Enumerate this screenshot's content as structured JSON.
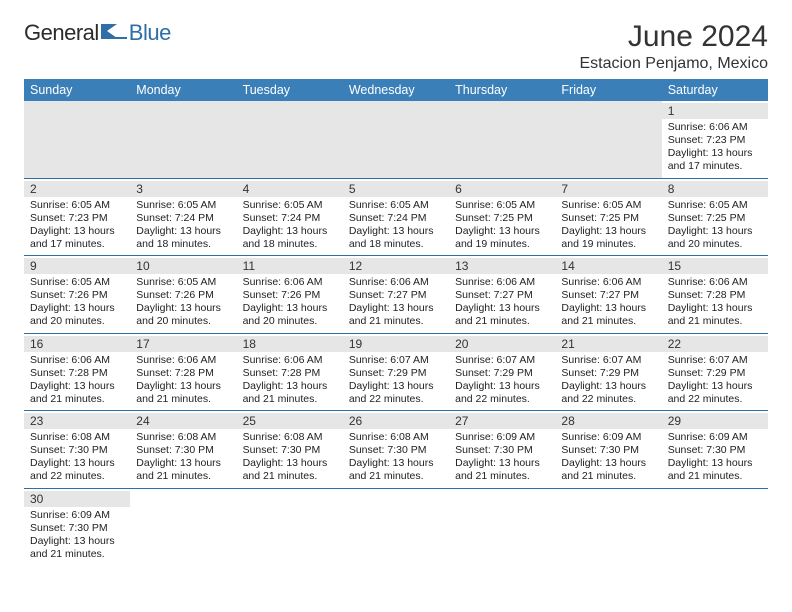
{
  "logo": {
    "text1": "General",
    "text2": "Blue"
  },
  "title": "June 2024",
  "location": "Estacion Penjamo, Mexico",
  "dayHeaders": [
    "Sunday",
    "Monday",
    "Tuesday",
    "Wednesday",
    "Thursday",
    "Friday",
    "Saturday"
  ],
  "colors": {
    "headerBg": "#3b7fb8",
    "headerText": "#ffffff",
    "rowDivider": "#2f6fa7",
    "dayBarBg": "#e6e6e6",
    "logoBlue": "#2f6fa7"
  },
  "weeks": [
    [
      null,
      null,
      null,
      null,
      null,
      null,
      {
        "n": "1",
        "sr": "6:06 AM",
        "ss": "7:23 PM",
        "dl": "13 hours and 17 minutes."
      }
    ],
    [
      {
        "n": "2",
        "sr": "6:05 AM",
        "ss": "7:23 PM",
        "dl": "13 hours and 17 minutes."
      },
      {
        "n": "3",
        "sr": "6:05 AM",
        "ss": "7:24 PM",
        "dl": "13 hours and 18 minutes."
      },
      {
        "n": "4",
        "sr": "6:05 AM",
        "ss": "7:24 PM",
        "dl": "13 hours and 18 minutes."
      },
      {
        "n": "5",
        "sr": "6:05 AM",
        "ss": "7:24 PM",
        "dl": "13 hours and 18 minutes."
      },
      {
        "n": "6",
        "sr": "6:05 AM",
        "ss": "7:25 PM",
        "dl": "13 hours and 19 minutes."
      },
      {
        "n": "7",
        "sr": "6:05 AM",
        "ss": "7:25 PM",
        "dl": "13 hours and 19 minutes."
      },
      {
        "n": "8",
        "sr": "6:05 AM",
        "ss": "7:25 PM",
        "dl": "13 hours and 20 minutes."
      }
    ],
    [
      {
        "n": "9",
        "sr": "6:05 AM",
        "ss": "7:26 PM",
        "dl": "13 hours and 20 minutes."
      },
      {
        "n": "10",
        "sr": "6:05 AM",
        "ss": "7:26 PM",
        "dl": "13 hours and 20 minutes."
      },
      {
        "n": "11",
        "sr": "6:06 AM",
        "ss": "7:26 PM",
        "dl": "13 hours and 20 minutes."
      },
      {
        "n": "12",
        "sr": "6:06 AM",
        "ss": "7:27 PM",
        "dl": "13 hours and 21 minutes."
      },
      {
        "n": "13",
        "sr": "6:06 AM",
        "ss": "7:27 PM",
        "dl": "13 hours and 21 minutes."
      },
      {
        "n": "14",
        "sr": "6:06 AM",
        "ss": "7:27 PM",
        "dl": "13 hours and 21 minutes."
      },
      {
        "n": "15",
        "sr": "6:06 AM",
        "ss": "7:28 PM",
        "dl": "13 hours and 21 minutes."
      }
    ],
    [
      {
        "n": "16",
        "sr": "6:06 AM",
        "ss": "7:28 PM",
        "dl": "13 hours and 21 minutes."
      },
      {
        "n": "17",
        "sr": "6:06 AM",
        "ss": "7:28 PM",
        "dl": "13 hours and 21 minutes."
      },
      {
        "n": "18",
        "sr": "6:06 AM",
        "ss": "7:28 PM",
        "dl": "13 hours and 21 minutes."
      },
      {
        "n": "19",
        "sr": "6:07 AM",
        "ss": "7:29 PM",
        "dl": "13 hours and 22 minutes."
      },
      {
        "n": "20",
        "sr": "6:07 AM",
        "ss": "7:29 PM",
        "dl": "13 hours and 22 minutes."
      },
      {
        "n": "21",
        "sr": "6:07 AM",
        "ss": "7:29 PM",
        "dl": "13 hours and 22 minutes."
      },
      {
        "n": "22",
        "sr": "6:07 AM",
        "ss": "7:29 PM",
        "dl": "13 hours and 22 minutes."
      }
    ],
    [
      {
        "n": "23",
        "sr": "6:08 AM",
        "ss": "7:30 PM",
        "dl": "13 hours and 22 minutes."
      },
      {
        "n": "24",
        "sr": "6:08 AM",
        "ss": "7:30 PM",
        "dl": "13 hours and 21 minutes."
      },
      {
        "n": "25",
        "sr": "6:08 AM",
        "ss": "7:30 PM",
        "dl": "13 hours and 21 minutes."
      },
      {
        "n": "26",
        "sr": "6:08 AM",
        "ss": "7:30 PM",
        "dl": "13 hours and 21 minutes."
      },
      {
        "n": "27",
        "sr": "6:09 AM",
        "ss": "7:30 PM",
        "dl": "13 hours and 21 minutes."
      },
      {
        "n": "28",
        "sr": "6:09 AM",
        "ss": "7:30 PM",
        "dl": "13 hours and 21 minutes."
      },
      {
        "n": "29",
        "sr": "6:09 AM",
        "ss": "7:30 PM",
        "dl": "13 hours and 21 minutes."
      }
    ],
    [
      {
        "n": "30",
        "sr": "6:09 AM",
        "ss": "7:30 PM",
        "dl": "13 hours and 21 minutes."
      },
      null,
      null,
      null,
      null,
      null,
      null
    ]
  ]
}
